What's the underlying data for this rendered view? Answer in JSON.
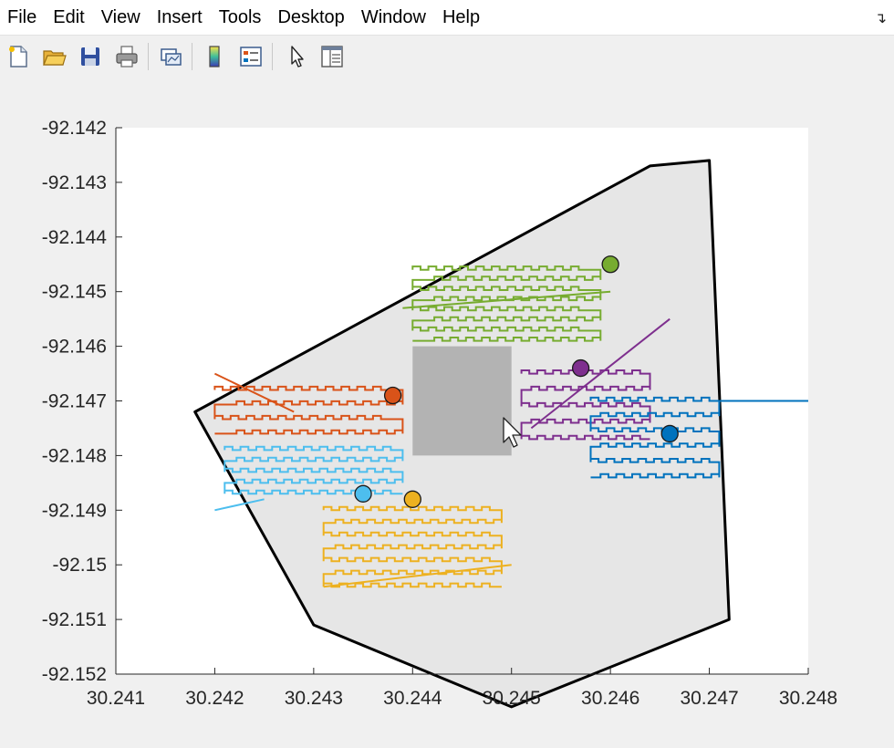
{
  "menu": [
    "File",
    "Edit",
    "View",
    "Insert",
    "Tools",
    "Desktop",
    "Window",
    "Help"
  ],
  "toolbar": {
    "buttons": [
      {
        "name": "new-figure-icon"
      },
      {
        "name": "open-file-icon"
      },
      {
        "name": "save-icon"
      },
      {
        "name": "print-icon"
      },
      {
        "name": "link-plot-icon"
      },
      {
        "name": "colorbar-icon"
      },
      {
        "name": "legend-icon"
      },
      {
        "name": "edit-plot-arrow-icon"
      },
      {
        "name": "property-inspector-icon"
      }
    ]
  },
  "colors": {
    "orange": "#d95319",
    "green": "#77ac30",
    "purple": "#7e2f8e",
    "blue": "#0072bd",
    "lightblue": "#4dbeee",
    "yellow": "#edb120",
    "region_fill": "#e6e6e6",
    "obstacle": "#b3b3b3"
  },
  "chart_data": {
    "type": "line",
    "xlim": [
      30.241,
      30.248
    ],
    "ylim": [
      -92.152,
      -92.142
    ],
    "xticks": [
      "30.241",
      "30.242",
      "30.243",
      "30.244",
      "30.245",
      "30.246",
      "30.247",
      "30.248"
    ],
    "yticks": [
      "-92.142",
      "-92.143",
      "-92.144",
      "-92.145",
      "-92.146",
      "-92.147",
      "-92.148",
      "-92.149",
      "-92.15",
      "-92.151",
      "-92.152"
    ],
    "boundary": [
      [
        30.2418,
        -92.1472
      ],
      [
        30.243,
        -92.1511
      ],
      [
        30.245,
        -92.1526
      ],
      [
        30.2472,
        -92.151
      ],
      [
        30.247,
        -92.1426
      ],
      [
        30.2464,
        -92.1427
      ],
      [
        30.2418,
        -92.1472
      ]
    ],
    "obstacle": [
      [
        30.244,
        -92.146
      ],
      [
        30.245,
        -92.146
      ],
      [
        30.245,
        -92.148
      ],
      [
        30.244,
        -92.148
      ]
    ],
    "agents": [
      {
        "color": "orange",
        "start": [
          30.2438,
          -92.1469
        ],
        "x0": 30.242,
        "x1": 30.2439,
        "y0": -92.1468,
        "y1": -92.1476,
        "rows": 4,
        "tooth": 6e-05,
        "tail": [
          [
            30.242,
            -92.1465
          ],
          [
            30.2428,
            -92.1472
          ]
        ]
      },
      {
        "color": "green",
        "start": [
          30.246,
          -92.1445
        ],
        "x0": 30.244,
        "x1": 30.2459,
        "y0": -92.1446,
        "y1": -92.1459,
        "rows": 8,
        "tooth": 6e-05,
        "tail": [
          [
            30.2439,
            -92.1453
          ],
          [
            30.246,
            -92.145
          ]
        ]
      },
      {
        "color": "purple",
        "start": [
          30.2457,
          -92.1464
        ],
        "x0": 30.2451,
        "x1": 30.2464,
        "y0": -92.1465,
        "y1": -92.1477,
        "rows": 5,
        "tooth": 6e-05,
        "tail": [
          [
            30.2452,
            -92.1475
          ],
          [
            30.2466,
            -92.1455
          ]
        ]
      },
      {
        "color": "blue",
        "start": [
          30.2466,
          -92.1476
        ],
        "x0": 30.2458,
        "x1": 30.2471,
        "y0": -92.147,
        "y1": -92.1484,
        "rows": 6,
        "tooth": 6e-05,
        "tail": [
          [
            30.2471,
            -92.147
          ],
          [
            30.248,
            -92.147
          ]
        ]
      },
      {
        "color": "lightblue",
        "start": [
          30.2435,
          -92.1487
        ],
        "x0": 30.2421,
        "x1": 30.2439,
        "y0": -92.1479,
        "y1": -92.1487,
        "rows": 5,
        "tooth": 6e-05,
        "tail": [
          [
            30.242,
            -92.149
          ],
          [
            30.2425,
            -92.1488
          ]
        ]
      },
      {
        "color": "yellow",
        "start": [
          30.244,
          -92.1488
        ],
        "x0": 30.2431,
        "x1": 30.2449,
        "y0": -92.149,
        "y1": -92.1504,
        "rows": 7,
        "tooth": 6e-05,
        "tail": [
          [
            30.2431,
            -92.1504
          ],
          [
            30.245,
            -92.15
          ]
        ]
      }
    ]
  }
}
